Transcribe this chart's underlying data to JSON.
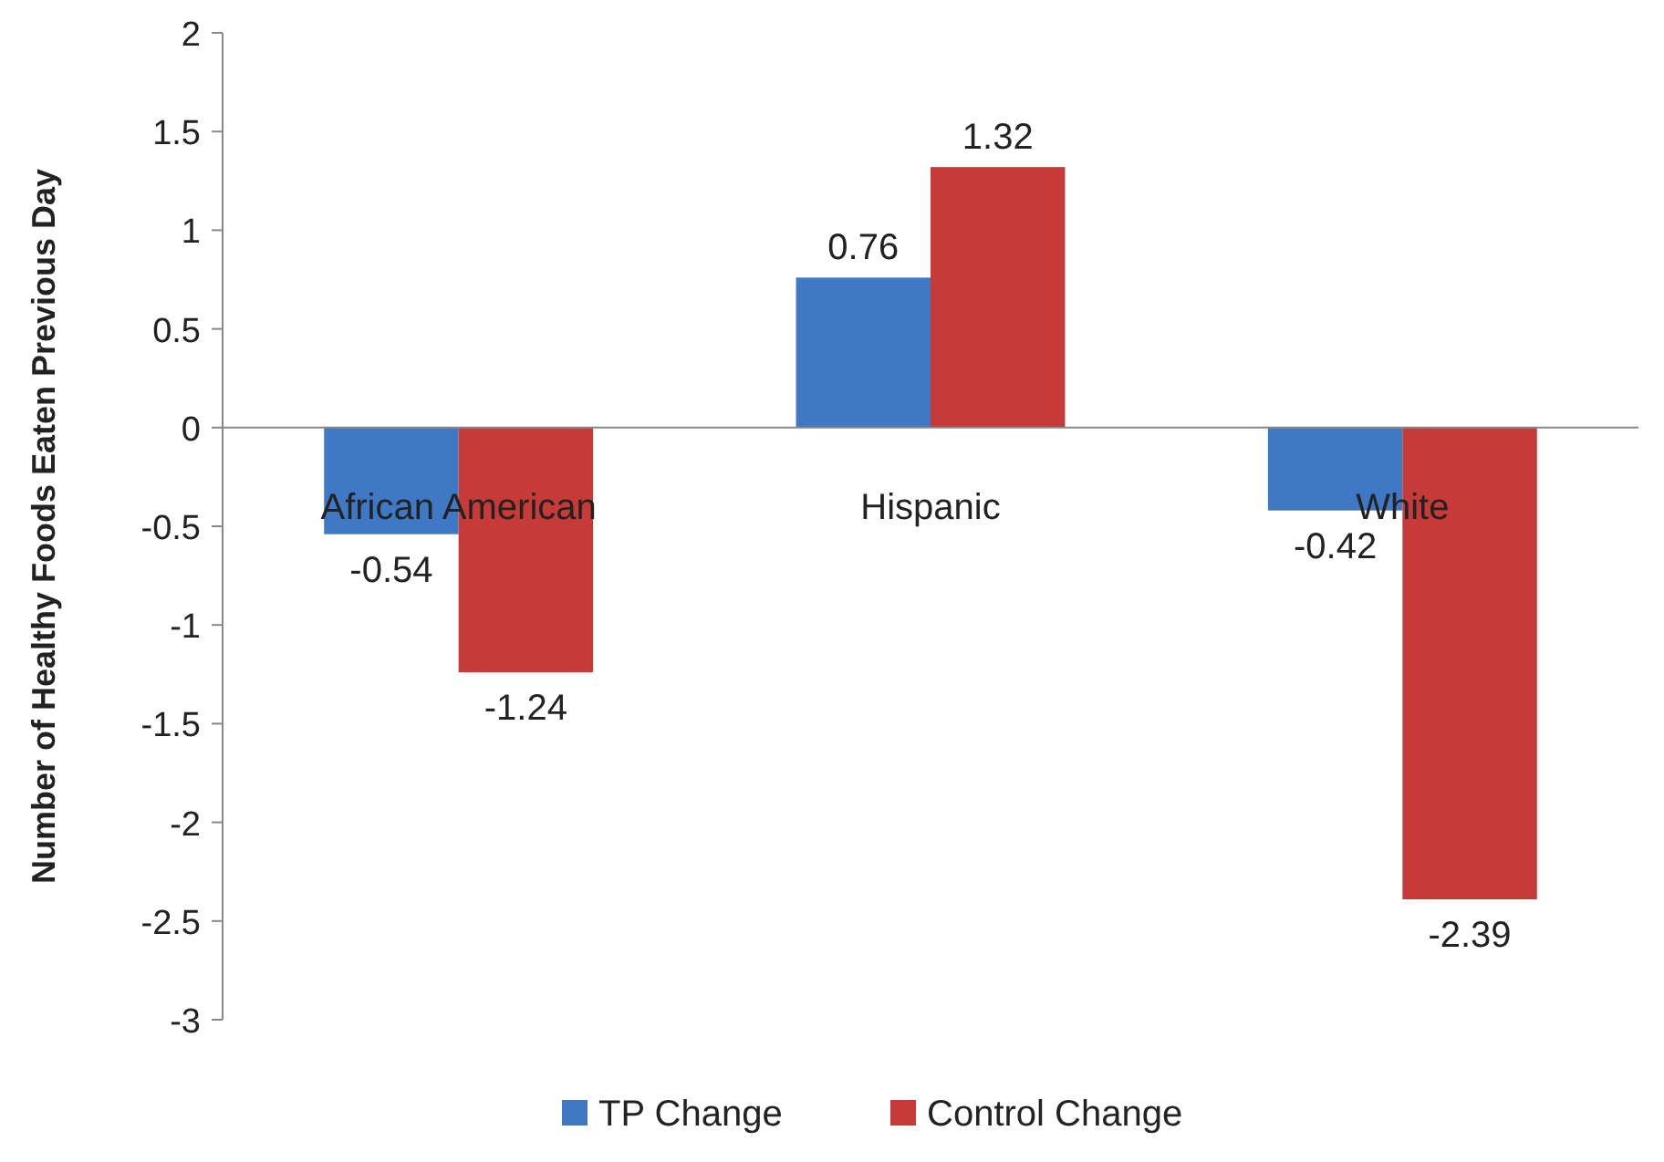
{
  "chart_data": {
    "type": "bar",
    "ylabel": "Number of Healthy Foods Eaten Previous Day",
    "categories": [
      "African American",
      "Hispanic",
      "White"
    ],
    "series": [
      {
        "name": "TP Change",
        "color": "#3f78c4",
        "values": [
          -0.54,
          0.76,
          -0.42
        ]
      },
      {
        "name": "Control Change",
        "color": "#c63b38",
        "values": [
          -1.24,
          1.32,
          -2.39
        ]
      }
    ],
    "ylim": [
      -3,
      2
    ],
    "yticks": [
      -3,
      -2.5,
      -2,
      -1.5,
      -1,
      -0.5,
      0,
      0.5,
      1,
      1.5,
      2
    ],
    "grid": false,
    "legend": "bottom",
    "data_labels": true
  }
}
